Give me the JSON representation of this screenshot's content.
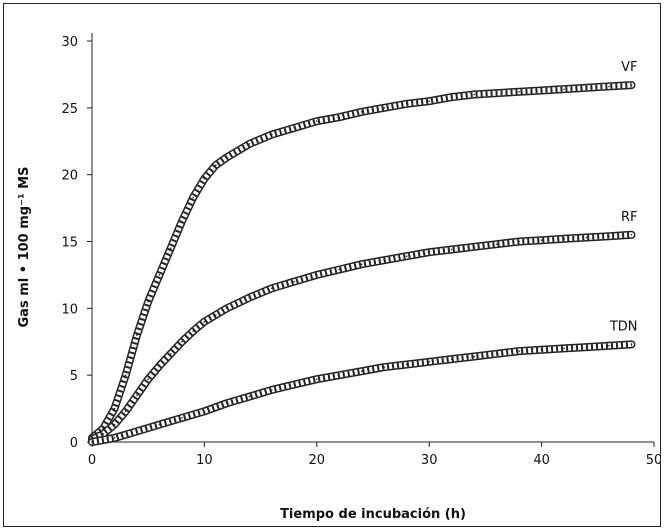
{
  "chart_data": {
    "type": "line",
    "xlabel": "Tiempo de incubación (h)",
    "ylabel": "Gas ml • 100 mg⁻¹ MS",
    "xlim": [
      0,
      50
    ],
    "ylim": [
      0,
      30
    ],
    "xticks": [
      "0",
      "10",
      "20",
      "30",
      "40",
      "50"
    ],
    "yticks": [
      "0",
      "5",
      "10",
      "15",
      "20",
      "25",
      "30"
    ],
    "grid": false,
    "legend": "inline labels at line ends",
    "series": [
      {
        "name": "VF",
        "x": [
          0,
          1,
          2,
          3,
          4,
          5,
          6,
          7,
          8,
          9,
          10,
          11,
          12,
          14,
          16,
          18,
          20,
          22,
          24,
          26,
          28,
          30,
          32,
          34,
          36,
          38,
          40,
          42,
          44,
          46,
          48
        ],
        "y": [
          0.3,
          1.0,
          2.5,
          5.0,
          8.0,
          10.5,
          12.5,
          14.5,
          16.5,
          18.3,
          19.7,
          20.7,
          21.3,
          22.3,
          23.0,
          23.5,
          24.0,
          24.3,
          24.7,
          25.0,
          25.3,
          25.5,
          25.8,
          26.0,
          26.1,
          26.2,
          26.3,
          26.4,
          26.5,
          26.6,
          26.7
        ]
      },
      {
        "name": "RF",
        "x": [
          0,
          1,
          2,
          3,
          4,
          5,
          6,
          7,
          8,
          9,
          10,
          11,
          12,
          14,
          16,
          18,
          20,
          22,
          24,
          26,
          28,
          30,
          32,
          34,
          36,
          38,
          40,
          42,
          44,
          46,
          48
        ],
        "y": [
          0.2,
          0.6,
          1.3,
          2.3,
          3.5,
          4.7,
          5.7,
          6.6,
          7.5,
          8.3,
          9.0,
          9.5,
          10.0,
          10.8,
          11.5,
          12.0,
          12.5,
          12.9,
          13.3,
          13.6,
          13.9,
          14.2,
          14.4,
          14.6,
          14.8,
          15.0,
          15.1,
          15.2,
          15.3,
          15.4,
          15.5
        ]
      },
      {
        "name": "TDN",
        "x": [
          0,
          2,
          4,
          6,
          8,
          10,
          12,
          14,
          16,
          18,
          20,
          22,
          24,
          26,
          28,
          30,
          32,
          34,
          36,
          38,
          40,
          42,
          44,
          46,
          48
        ],
        "y": [
          0.0,
          0.3,
          0.8,
          1.3,
          1.8,
          2.3,
          2.9,
          3.4,
          3.9,
          4.3,
          4.7,
          5.0,
          5.3,
          5.6,
          5.8,
          6.0,
          6.2,
          6.4,
          6.6,
          6.8,
          6.9,
          7.0,
          7.1,
          7.2,
          7.3
        ]
      }
    ]
  }
}
